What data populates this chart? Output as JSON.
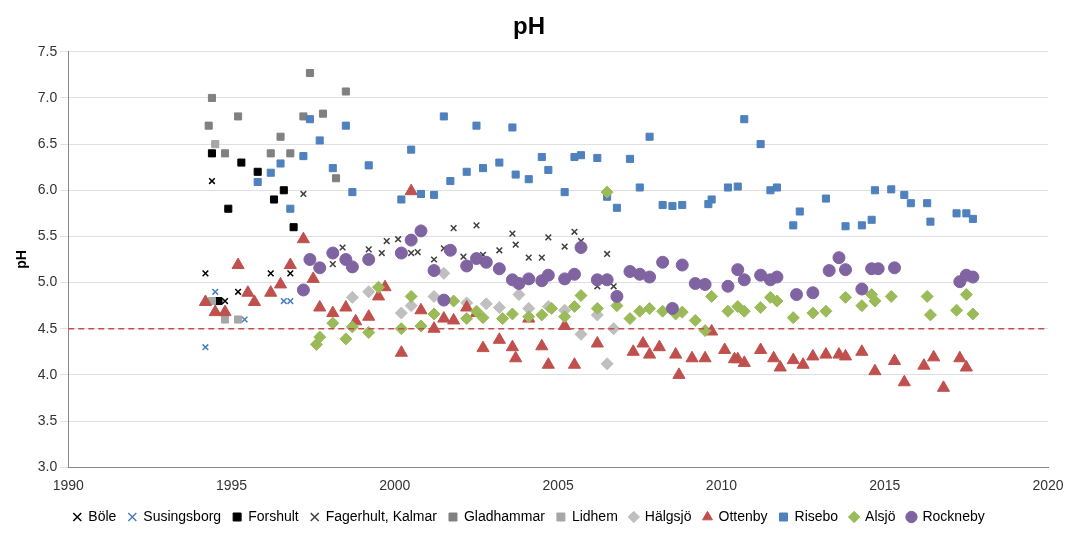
{
  "chart_data": {
    "type": "scatter",
    "title": "pH",
    "ylabel": "pH",
    "xlim": [
      1990,
      2020
    ],
    "xticks": [
      1990,
      1995,
      2000,
      2005,
      2010,
      2015,
      2020
    ],
    "ylim": [
      3,
      7.5
    ],
    "yticks": [
      {
        "value": 3,
        "label": "3.0"
      },
      {
        "value": 3.5,
        "label": "3.5"
      },
      {
        "value": 4,
        "label": "4.0"
      },
      {
        "value": 4.5,
        "label": "4.5"
      },
      {
        "value": 5,
        "label": "5.0"
      },
      {
        "value": 5.5,
        "label": "5.5"
      },
      {
        "value": 6,
        "label": "6.0"
      },
      {
        "value": 6.5,
        "label": "6.5"
      },
      {
        "value": 7,
        "label": "7.0"
      },
      {
        "value": 7.5,
        "label": "7.5"
      }
    ],
    "grid": "y",
    "legend": "bottom",
    "ref_lines": [
      {
        "axis": "y",
        "value": 4.5,
        "label": null,
        "color": "#c0504d",
        "line_style": "dashed"
      }
    ],
    "series": [
      {
        "name": "Böle",
        "color": "#000000",
        "marker": "cross",
        "x": [
          1994.2,
          1994.4,
          1994.8,
          1995.2,
          1996.2,
          1996.8
        ],
        "values": [
          5.1,
          6.1,
          4.8,
          4.9,
          5.1,
          5.1
        ]
      },
      {
        "name": "Susingsborg",
        "color": "#4a7ebb",
        "marker": "cross",
        "x": [
          1994.2,
          1994.5,
          1995.4,
          1996.6,
          1996.8
        ],
        "values": [
          4.3,
          4.9,
          4.6,
          4.8,
          4.8
        ]
      },
      {
        "name": "Forshult",
        "color": "#000000",
        "marker": "square",
        "x": [
          1994.4,
          1994.6,
          1994.9,
          1995.3,
          1995.8,
          1996.3,
          1996.6,
          1996.9
        ],
        "values": [
          6.4,
          4.8,
          5.8,
          6.3,
          6.2,
          5.9,
          6.0,
          5.6
        ]
      },
      {
        "name": "Fagerhult, Kalmar",
        "color": "#404040",
        "marker": "cross",
        "x": [
          1997.2,
          1998.1,
          1998.4,
          1999.2,
          1999.6,
          1999.75,
          2000.1,
          2000.5,
          2000.7,
          2001.2,
          2001.5,
          2001.8,
          2002.1,
          2002.5,
          2002.7,
          2003.2,
          2003.6,
          2003.7,
          2004.1,
          2004.5,
          2004.7,
          2005.2,
          2005.5,
          2005.7,
          2006.2,
          2006.5,
          2006.7
        ],
        "values": [
          5.96,
          5.2,
          5.38,
          5.36,
          5.32,
          5.45,
          5.47,
          5.32,
          5.33,
          5.25,
          5.37,
          5.59,
          5.28,
          5.62,
          5.3,
          5.35,
          5.53,
          5.41,
          5.27,
          5.27,
          5.49,
          5.39,
          5.55,
          5.45,
          4.96,
          5.31,
          4.96
        ]
      },
      {
        "name": "Gladhammar",
        "color": "#808080",
        "marker": "square",
        "x": [
          1994.3,
          1994.4,
          1994.8,
          1995.2,
          1996.2,
          1996.5,
          1996.8,
          1997.2,
          1997.4,
          1997.8,
          1998.2,
          1998.5
        ],
        "values": [
          6.7,
          7.0,
          6.4,
          6.8,
          6.4,
          6.58,
          6.4,
          6.8,
          7.27,
          6.83,
          6.13,
          7.07
        ]
      },
      {
        "name": "Lidhem",
        "color": "#a6a6a6",
        "marker": "square",
        "x": [
          1994.4,
          1994.5,
          1994.8,
          1995.2
        ],
        "values": [
          4.8,
          6.5,
          4.6,
          4.6
        ]
      },
      {
        "name": "Hälgsjö",
        "color": "#bfbfbf",
        "marker": "diamond",
        "x": [
          1998.7,
          1999.2,
          2000.2,
          2000.5,
          2001.2,
          2001.5,
          2002.2,
          2002.8,
          2003.2,
          2003.8,
          2004.1,
          2004.7,
          2005.2,
          2005.7,
          2006.2,
          2006.5,
          2006.7
        ],
        "values": [
          4.84,
          4.9,
          4.67,
          4.75,
          4.85,
          5.1,
          4.78,
          4.77,
          4.73,
          4.87,
          4.72,
          4.74,
          4.7,
          4.44,
          4.65,
          4.12,
          4.5
        ]
      },
      {
        "name": "Ottenby",
        "color": "#c0504d",
        "marker": "triangle",
        "x": [
          1994.2,
          1994.5,
          1994.8,
          1995.2,
          1995.5,
          1995.7,
          1996.2,
          1996.5,
          1996.8,
          1997.2,
          1997.5,
          1997.7,
          1998.1,
          1998.5,
          1998.8,
          1999.2,
          1999.5,
          1999.7,
          2000.2,
          2000.5,
          2000.8,
          2001.2,
          2001.5,
          2001.8,
          2002.2,
          2002.5,
          2002.7,
          2003.2,
          2003.6,
          2003.7,
          2004.1,
          2004.5,
          2004.7,
          2005.2,
          2005.5,
          2006.2,
          2007.3,
          2007.6,
          2007.8,
          2008.1,
          2008.6,
          2008.7,
          2009.1,
          2009.5,
          2009.7,
          2010.1,
          2010.4,
          2010.5,
          2010.7,
          2011.2,
          2011.6,
          2011.8,
          2012.2,
          2012.5,
          2012.8,
          2013.2,
          2013.6,
          2013.8,
          2014.3,
          2014.7,
          2015.3,
          2015.6,
          2016.2,
          2016.5,
          2016.8,
          2017.3,
          2017.5
        ],
        "values": [
          4.79,
          4.68,
          4.68,
          5.19,
          4.89,
          4.79,
          4.89,
          4.98,
          5.19,
          5.47,
          5.04,
          4.73,
          4.67,
          4.73,
          4.58,
          4.63,
          4.85,
          4.95,
          4.24,
          5.99,
          4.7,
          4.5,
          4.61,
          4.59,
          4.73,
          4.67,
          4.29,
          4.38,
          4.3,
          4.18,
          4.61,
          4.31,
          4.11,
          4.53,
          4.11,
          4.34,
          4.25,
          4.34,
          4.22,
          4.3,
          4.22,
          4.0,
          4.18,
          4.18,
          4.47,
          4.27,
          4.17,
          4.17,
          4.13,
          4.27,
          4.18,
          4.08,
          4.16,
          4.11,
          4.2,
          4.22,
          4.22,
          4.2,
          4.25,
          4.04,
          4.15,
          3.92,
          4.1,
          4.19,
          3.86,
          4.18,
          4.08
        ]
      },
      {
        "name": "Risebo",
        "color": "#4f81bd",
        "marker": "square",
        "x": [
          1995.8,
          1996.2,
          1996.5,
          1996.8,
          1997.2,
          1997.4,
          1997.7,
          1998.1,
          1998.5,
          1998.7,
          1999.2,
          2000.2,
          2000.5,
          2000.8,
          2001.2,
          2001.5,
          2001.7,
          2002.2,
          2002.5,
          2002.7,
          2003.2,
          2003.6,
          2003.7,
          2004.1,
          2004.5,
          2004.7,
          2005.2,
          2005.5,
          2005.7,
          2006.2,
          2006.5,
          2006.8,
          2007.2,
          2007.5,
          2007.8,
          2008.2,
          2008.5,
          2008.8,
          2009.6,
          2009.7,
          2010.2,
          2010.5,
          2010.7,
          2011.2,
          2011.5,
          2011.7,
          2012.2,
          2012.4,
          2013.2,
          2013.8,
          2014.3,
          2014.6,
          2014.7,
          2015.2,
          2015.6,
          2015.8,
          2016.3,
          2016.4,
          2017.2,
          2017.5,
          2017.7
        ],
        "values": [
          6.09,
          6.19,
          6.29,
          5.8,
          6.37,
          6.77,
          6.54,
          6.24,
          6.7,
          5.98,
          6.27,
          5.9,
          6.44,
          5.96,
          5.95,
          6.8,
          6.1,
          6.2,
          6.7,
          6.24,
          6.3,
          6.68,
          6.17,
          6.12,
          6.36,
          6.22,
          5.98,
          6.36,
          6.38,
          6.35,
          5.93,
          5.81,
          6.34,
          6.03,
          6.58,
          5.84,
          5.83,
          5.84,
          5.85,
          5.9,
          6.03,
          6.04,
          6.77,
          6.5,
          6.0,
          6.03,
          5.62,
          5.77,
          5.91,
          5.61,
          5.62,
          5.68,
          6.0,
          6.01,
          5.95,
          5.86,
          5.86,
          5.66,
          5.75,
          5.75,
          5.69
        ]
      },
      {
        "name": "Alsjö",
        "color": "#9bbb59",
        "marker": "diamond",
        "x": [
          1997.6,
          1997.7,
          1998.1,
          1998.5,
          1998.7,
          1999.2,
          1999.5,
          2000.2,
          2000.5,
          2000.8,
          2001.2,
          2001.8,
          2002.2,
          2002.5,
          2002.7,
          2003.3,
          2003.6,
          2004.1,
          2004.5,
          2004.8,
          2005.2,
          2005.5,
          2005.7,
          2006.2,
          2006.5,
          2006.8,
          2007.2,
          2007.5,
          2007.8,
          2008.2,
          2008.6,
          2008.8,
          2009.2,
          2009.5,
          2009.7,
          2010.2,
          2010.5,
          2010.7,
          2011.2,
          2011.5,
          2011.7,
          2012.2,
          2012.8,
          2013.2,
          2013.8,
          2014.3,
          2014.6,
          2014.7,
          2015.2,
          2016.3,
          2016.4,
          2017.2,
          2017.5,
          2017.7
        ],
        "values": [
          4.33,
          4.41,
          4.56,
          4.39,
          4.52,
          4.46,
          4.95,
          4.5,
          4.85,
          4.53,
          4.66,
          4.8,
          4.61,
          4.69,
          4.62,
          4.61,
          4.66,
          4.63,
          4.65,
          4.72,
          4.63,
          4.74,
          4.86,
          4.72,
          5.98,
          4.75,
          4.61,
          4.69,
          4.72,
          4.69,
          4.66,
          4.68,
          4.59,
          4.48,
          4.85,
          4.69,
          4.74,
          4.69,
          4.73,
          4.84,
          4.8,
          4.62,
          4.67,
          4.69,
          4.84,
          4.75,
          4.87,
          4.8,
          4.85,
          4.85,
          4.65,
          4.7,
          4.87,
          4.66
        ]
      },
      {
        "name": "Rockneby",
        "color": "#8064a2",
        "marker": "circle",
        "x": [
          1997.2,
          1997.4,
          1997.7,
          1998.1,
          1998.5,
          1998.7,
          1999.2,
          2000.2,
          2000.5,
          2000.8,
          2001.2,
          2001.5,
          2001.7,
          2002.2,
          2002.5,
          2002.8,
          2003.2,
          2003.6,
          2003.8,
          2004.1,
          2004.5,
          2004.7,
          2005.2,
          2005.5,
          2005.7,
          2006.2,
          2006.5,
          2006.8,
          2007.2,
          2007.5,
          2007.8,
          2008.2,
          2008.5,
          2008.8,
          2009.2,
          2009.5,
          2010.2,
          2010.5,
          2010.7,
          2011.2,
          2011.5,
          2011.7,
          2012.3,
          2012.8,
          2013.3,
          2013.6,
          2013.8,
          2014.3,
          2014.6,
          2014.8,
          2015.3,
          2017.3,
          2017.5,
          2017.7
        ],
        "values": [
          4.92,
          5.25,
          5.16,
          5.32,
          5.25,
          5.17,
          5.25,
          5.32,
          5.46,
          5.56,
          5.13,
          4.81,
          5.35,
          5.18,
          5.26,
          5.22,
          5.15,
          5.03,
          4.99,
          5.04,
          5.02,
          5.08,
          5.04,
          5.09,
          5.38,
          5.03,
          5.03,
          4.85,
          5.12,
          5.09,
          5.06,
          5.22,
          4.72,
          5.19,
          4.99,
          4.98,
          4.96,
          5.14,
          5.03,
          5.08,
          5.03,
          5.06,
          4.87,
          4.89,
          5.13,
          5.27,
          5.14,
          4.93,
          5.15,
          5.15,
          5.16,
          5.01,
          5.08,
          5.06
        ]
      }
    ]
  }
}
